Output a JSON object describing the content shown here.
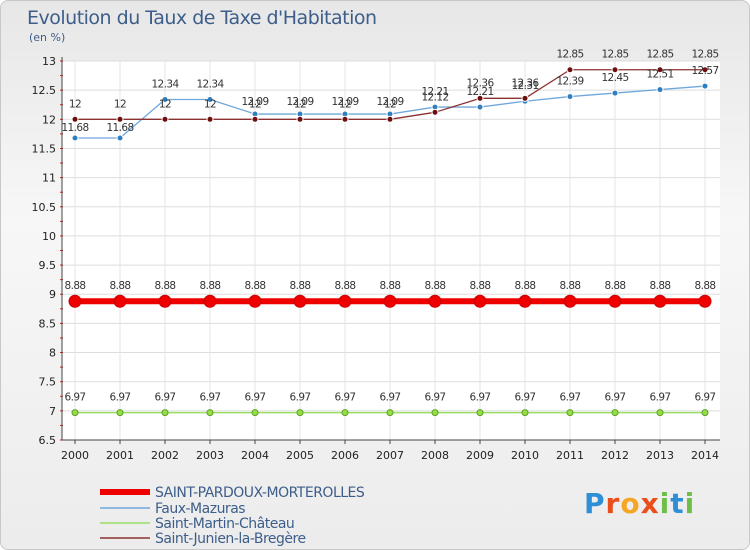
{
  "chart_data": {
    "type": "line",
    "title": "Evolution du Taux de Taxe d'Habitation",
    "ylabel": "(en %)",
    "xlabel": "",
    "ylim": [
      6.5,
      13
    ],
    "yticks": [
      6.5,
      7,
      7.5,
      8,
      8.5,
      9,
      9.5,
      10,
      10.5,
      11,
      11.5,
      12,
      12.5,
      13
    ],
    "ytick_labels": [
      "6.5",
      "7",
      "7.5",
      "8",
      "8.5",
      "9",
      "9.5",
      "10",
      "10.5",
      "11",
      "11.5",
      "12",
      "12.5",
      "13"
    ],
    "categories": [
      "2000",
      "2001",
      "2002",
      "2003",
      "2004",
      "2005",
      "2006",
      "2007",
      "2008",
      "2009",
      "2010",
      "2011",
      "2012",
      "2013",
      "2014"
    ],
    "series": [
      {
        "name": "SAINT-PARDOUX-MORTEROLLES",
        "color": "#ee0000",
        "values": [
          8.88,
          8.88,
          8.88,
          8.88,
          8.88,
          8.88,
          8.88,
          8.88,
          8.88,
          8.88,
          8.88,
          8.88,
          8.88,
          8.88,
          8.88
        ],
        "labels": [
          "8.88",
          "8.88",
          "8.88",
          "8.88",
          "8.88",
          "8.88",
          "8.88",
          "8.88",
          "8.88",
          "8.88",
          "8.88",
          "8.88",
          "8.88",
          "8.88",
          "8.88"
        ]
      },
      {
        "name": "Faux-Mazuras",
        "color": "#6fa8dc",
        "values": [
          11.68,
          11.68,
          12.34,
          12.34,
          12.09,
          12.09,
          12.09,
          12.09,
          12.21,
          12.21,
          12.31,
          12.39,
          12.45,
          12.51,
          12.57
        ],
        "labels": [
          "11.68",
          "11.68",
          "12.34",
          "12.34",
          "12.09",
          "12.09",
          "12.09",
          "12.09",
          "12.21",
          "12.21",
          "12.31",
          "12.39",
          "12.45",
          "12.51",
          "12.57"
        ]
      },
      {
        "name": "Saint-Martin-Château",
        "color": "#99dd66",
        "values": [
          6.97,
          6.97,
          6.97,
          6.97,
          6.97,
          6.97,
          6.97,
          6.97,
          6.97,
          6.97,
          6.97,
          6.97,
          6.97,
          6.97,
          6.97
        ],
        "labels": [
          "6.97",
          "6.97",
          "6.97",
          "6.97",
          "6.97",
          "6.97",
          "6.97",
          "6.97",
          "6.97",
          "6.97",
          "6.97",
          "6.97",
          "6.97",
          "6.97",
          "6.97"
        ]
      },
      {
        "name": "Saint-Junien-la-Bregère",
        "color": "#8b3030",
        "values": [
          12,
          12,
          12,
          12,
          12,
          12,
          12,
          12,
          12.12,
          12.36,
          12.36,
          12.85,
          12.85,
          12.85,
          12.85
        ],
        "labels": [
          "12",
          "12",
          "12",
          "12",
          "12",
          "12",
          "12",
          "12",
          "12.12",
          "12.36",
          "12.36",
          "12.85",
          "12.85",
          "12.85",
          "12.85"
        ]
      }
    ]
  },
  "logo": {
    "text": "Proxiti"
  }
}
